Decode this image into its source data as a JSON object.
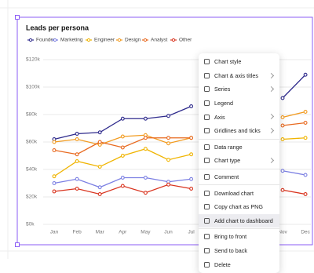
{
  "chart_data": {
    "type": "line",
    "title": "Leads per persona",
    "categories": [
      "Jan",
      "Feb",
      "Mar",
      "Apr",
      "May",
      "Jun",
      "Jul",
      null,
      null,
      null,
      "Nov",
      "Dec"
    ],
    "series": [
      {
        "name": "Founder",
        "color": "#2e2a8c",
        "values": [
          62,
          66,
          67,
          77,
          77,
          79,
          86,
          null,
          null,
          null,
          92,
          109
        ]
      },
      {
        "name": "Marketing",
        "color": "#7c80e3",
        "values": [
          30,
          33,
          27,
          34,
          34,
          31,
          33,
          null,
          null,
          null,
          39,
          36
        ]
      },
      {
        "name": "Engineer",
        "color": "#f0b400",
        "values": [
          35,
          46,
          42,
          50,
          55,
          47,
          51,
          null,
          null,
          null,
          62,
          63
        ]
      },
      {
        "name": "Design",
        "color": "#f29b1f",
        "values": [
          60,
          62,
          58,
          64,
          65,
          59,
          63,
          null,
          null,
          null,
          78,
          82
        ]
      },
      {
        "name": "Analyst",
        "color": "#e8691f",
        "values": [
          54,
          51,
          60,
          56,
          63,
          63,
          63,
          null,
          null,
          null,
          72,
          74
        ]
      },
      {
        "name": "Other",
        "color": "#d9341f",
        "values": [
          24,
          26,
          22,
          28,
          23,
          29,
          26,
          null,
          null,
          null,
          25,
          22
        ]
      }
    ],
    "ylim": [
      0,
      120
    ],
    "yticks": [
      {
        "value": 0,
        "label": "$0k"
      },
      {
        "value": 20,
        "label": "$20k"
      },
      {
        "value": 40,
        "label": "$40k"
      },
      {
        "value": 60,
        "label": "$60k"
      },
      {
        "value": 80,
        "label": "$80k"
      },
      {
        "value": 100,
        "label": "$100k"
      },
      {
        "value": 120,
        "label": "$120k"
      }
    ],
    "grid": true
  },
  "menu": {
    "groups": [
      [
        {
          "label": "Chart style",
          "submenu": false
        },
        {
          "label": "Chart & axis titles",
          "submenu": true
        },
        {
          "label": "Series",
          "submenu": true
        },
        {
          "label": "Legend",
          "submenu": false
        },
        {
          "label": "Axis",
          "submenu": true
        },
        {
          "label": "Gridlines and ticks",
          "submenu": true
        }
      ],
      [
        {
          "label": "Data range",
          "submenu": false
        },
        {
          "label": "Chart type",
          "submenu": true
        }
      ],
      [
        {
          "label": "Comment",
          "submenu": false
        }
      ],
      [
        {
          "label": "Download chart",
          "submenu": false
        },
        {
          "label": "Copy chart as PNG",
          "submenu": false
        },
        {
          "label": "Add chart to dashboard",
          "submenu": false,
          "active": true
        }
      ],
      [
        {
          "label": "Bring to front",
          "submenu": false
        },
        {
          "label": "Send to back",
          "submenu": false
        },
        {
          "label": "Delete",
          "submenu": false
        }
      ]
    ]
  }
}
